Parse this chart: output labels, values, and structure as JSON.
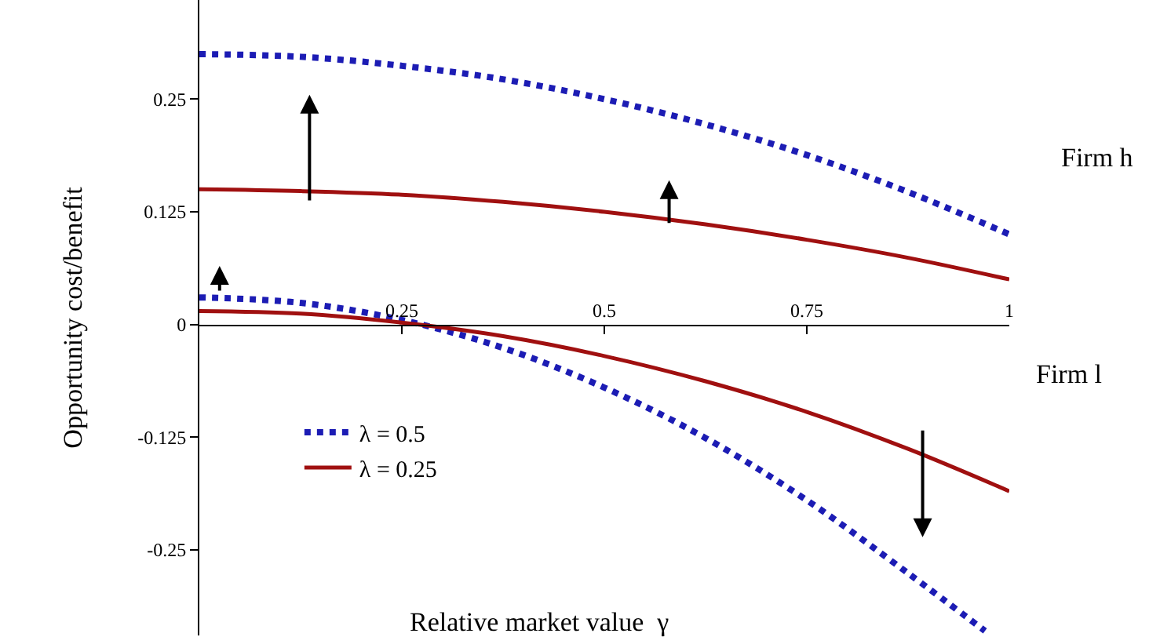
{
  "chart_data": {
    "type": "line",
    "xlabel": "Relative market value  γ",
    "ylabel": "Opportunity cost/benefit",
    "xlim": [
      0,
      1
    ],
    "ylim": [
      -0.345,
      0.36
    ],
    "xticks": [
      0.25,
      0.5,
      0.75,
      1
    ],
    "yticks": [
      -0.25,
      -0.125,
      0,
      0.125,
      0.25
    ],
    "legend": "bottom left",
    "annotations": [
      "Firm h",
      "Firm l"
    ],
    "series": [
      {
        "name": "λ = 0.5",
        "color": "#1c1cb4",
        "line_style": "dotted",
        "x": [
          0,
          0.125,
          0.25,
          0.375,
          0.5,
          0.625,
          0.75,
          0.875,
          1
        ],
        "values": [
          0.3,
          0.297,
          0.287,
          0.272,
          0.25,
          0.222,
          0.188,
          0.147,
          0.1
        ]
      },
      {
        "name": "λ = 0.25",
        "color": "#a01010",
        "line_style": "solid",
        "x": [
          0,
          0.125,
          0.25,
          0.375,
          0.5,
          0.625,
          0.75,
          0.875,
          1
        ],
        "values": [
          0.15,
          0.148,
          0.144,
          0.136,
          0.125,
          0.111,
          0.094,
          0.074,
          0.05
        ]
      },
      {
        "color": "#1c1cb4",
        "line_style": "dotted",
        "x": [
          0,
          0.125,
          0.25,
          0.375,
          0.5,
          0.625,
          0.75,
          0.875,
          0.97
        ],
        "values": [
          0.03,
          0.024,
          0.005,
          -0.026,
          -0.07,
          -0.126,
          -0.195,
          -0.276,
          -0.34
        ]
      },
      {
        "color": "#a01010",
        "line_style": "solid",
        "x": [
          0,
          0.125,
          0.25,
          0.375,
          0.5,
          0.625,
          0.75,
          0.875,
          1
        ],
        "values": [
          0.015,
          0.012,
          0.002,
          -0.013,
          -0.035,
          -0.063,
          -0.097,
          -0.138,
          -0.185
        ]
      }
    ]
  }
}
